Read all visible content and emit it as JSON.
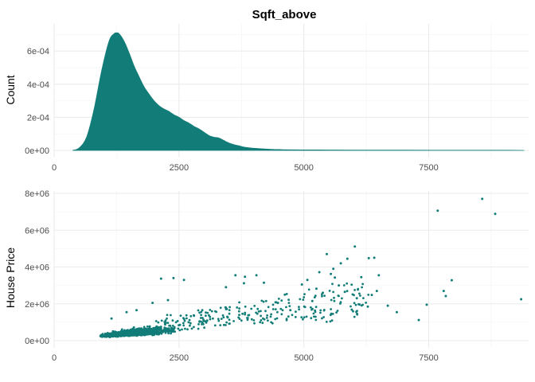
{
  "colors": {
    "accent": "#127d78",
    "grid_major": "#ebebeb",
    "grid_minor": "#f5f5f5",
    "tick_text": "#4d4d4d"
  },
  "chart_data": [
    {
      "type": "area",
      "title": "Sqft_above",
      "xlabel": "",
      "ylabel": "Count",
      "xlim": [
        0,
        9500
      ],
      "ylim": [
        0,
        0.00075
      ],
      "xticks": [
        0,
        2500,
        5000,
        7500
      ],
      "xtick_labels": [
        "0",
        "2500",
        "5000",
        "7500"
      ],
      "yticks": [
        0,
        0.0002,
        0.0004,
        0.0006
      ],
      "ytick_labels": [
        "0e+00",
        "2e-04",
        "4e-04",
        "6e-04"
      ],
      "grid": true,
      "x": [
        370,
        500,
        650,
        800,
        950,
        1100,
        1200,
        1250,
        1300,
        1400,
        1500,
        1600,
        1700,
        1800,
        1900,
        2000,
        2100,
        2200,
        2300,
        2400,
        2500,
        2600,
        2700,
        2800,
        2900,
        3000,
        3100,
        3200,
        3300,
        3400,
        3500,
        3600,
        3700,
        3800,
        3900,
        4000,
        4200,
        4400,
        4600,
        4800,
        5000,
        5500,
        6000,
        7000,
        8000,
        9000,
        9410
      ],
      "y": [
        0,
        1.5e-05,
        8e-05,
        0.00025,
        0.00048,
        0.00066,
        0.000705,
        0.00071,
        0.000705,
        0.00066,
        0.00059,
        0.00051,
        0.000445,
        0.000385,
        0.00034,
        0.0003,
        0.00027,
        0.00025,
        0.000235,
        0.000215,
        0.0002,
        0.00018,
        0.000165,
        0.000145,
        0.00013,
        0.00011,
        9e-05,
        8e-05,
        7.5e-05,
        6e-05,
        4.5e-05,
        3.5e-05,
        2.8e-05,
        2e-05,
        1.6e-05,
        1.3e-05,
        9e-06,
        6e-06,
        4.5e-06,
        3.5e-06,
        3e-06,
        2.5e-06,
        2e-06,
        1.5e-06,
        1e-06,
        1e-06,
        0
      ]
    },
    {
      "type": "scatter",
      "title": "",
      "xlabel": "",
      "ylabel": "House Price",
      "xlim": [
        0,
        9500
      ],
      "ylim": [
        0,
        8000000
      ],
      "xticks": [
        0,
        2500,
        5000,
        7500
      ],
      "xtick_labels": [
        "0",
        "2500",
        "5000",
        "7500"
      ],
      "yticks": [
        0,
        2000000,
        4000000,
        6000000,
        8000000
      ],
      "ytick_labels": [
        "0e+00",
        "2e+06",
        "4e+06",
        "6e+06",
        "8e+06"
      ],
      "grid": true,
      "points": [
        [
          8570,
          7700000
        ],
        [
          7680,
          7060000
        ],
        [
          8830,
          6890000
        ],
        [
          9350,
          2250000
        ],
        [
          7960,
          3280000
        ],
        [
          7800,
          2700000
        ],
        [
          7840,
          2420000
        ],
        [
          7300,
          1120000
        ],
        [
          7460,
          1950000
        ],
        [
          6410,
          4500000
        ],
        [
          6300,
          4480000
        ],
        [
          6020,
          5110000
        ],
        [
          5870,
          4450000
        ],
        [
          5460,
          4700000
        ],
        [
          5540,
          3620000
        ],
        [
          5310,
          3720000
        ],
        [
          5590,
          3900000
        ],
        [
          5740,
          4200000
        ],
        [
          6150,
          3450000
        ],
        [
          6500,
          3550000
        ],
        [
          6460,
          2700000
        ],
        [
          6680,
          1900000
        ],
        [
          6280,
          1850000
        ],
        [
          6060,
          2300000
        ],
        [
          6360,
          2480000
        ],
        [
          5960,
          1680000
        ],
        [
          5700,
          3000000
        ],
        [
          5620,
          3430000
        ],
        [
          4200,
          3150000
        ],
        [
          3820,
          3470000
        ],
        [
          3630,
          3550000
        ],
        [
          2390,
          3400000
        ],
        [
          2140,
          3370000
        ],
        [
          2600,
          3300000
        ],
        [
          4050,
          3550000
        ],
        [
          3800,
          3120000
        ],
        [
          5070,
          3300000
        ],
        [
          4960,
          3050000
        ],
        [
          5250,
          2820000
        ],
        [
          4620,
          2500000
        ],
        [
          5380,
          2600000
        ],
        [
          5820,
          2650000
        ],
        [
          6860,
          1550000
        ],
        [
          1650,
          1650000
        ],
        [
          1970,
          2050000
        ],
        [
          1450,
          1550000
        ],
        [
          1150,
          1200000
        ],
        [
          2280,
          2200000
        ],
        [
          3440,
          2900000
        ],
        [
          4480,
          2050000
        ],
        [
          4730,
          1650000
        ],
        [
          5170,
          2150000
        ]
      ]
    }
  ]
}
